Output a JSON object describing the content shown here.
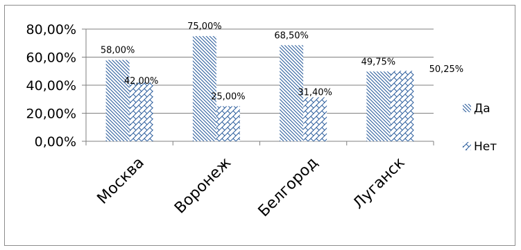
{
  "chart_data": {
    "type": "bar",
    "categories": [
      "Москва",
      "Воронеж",
      "Белгород",
      "Луганск"
    ],
    "series": [
      {
        "name": "Да",
        "values": [
          58.0,
          75.0,
          68.5,
          49.75
        ],
        "labels": [
          "58,00%",
          "75,00%",
          "68,50%",
          "49,75%"
        ],
        "pattern": "diagonal-hatch"
      },
      {
        "name": "Нет",
        "values": [
          42.0,
          25.0,
          31.4,
          50.25
        ],
        "labels": [
          "42,00%",
          "25,00%",
          "31,40%",
          "50,25%"
        ],
        "pattern": "crosshatch"
      }
    ],
    "ylim": [
      0,
      80
    ],
    "yticks": [
      0,
      20,
      40,
      60,
      80
    ],
    "ytick_labels": [
      "0,00%",
      "20,00%",
      "40,00%",
      "60,00%",
      "80,00%"
    ],
    "grid": true,
    "legend_position": "right",
    "colors": {
      "bar_fill": "#2b5d9c",
      "grid": "#7f7f7f",
      "frame": "#8c8c8c"
    }
  }
}
